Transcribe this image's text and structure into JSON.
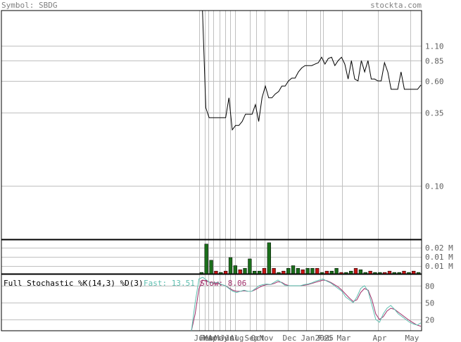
{
  "header": {
    "symbol": "Symbol: SBDG",
    "site": "stockta.com"
  },
  "chart_data": {
    "type": "line",
    "price": {
      "y_scale": "log",
      "ylim": [
        0.04,
        2.0
      ],
      "y_ticks": [
        {
          "value": 1.1,
          "label": "1.10"
        },
        {
          "value": 0.85,
          "label": "0.85"
        },
        {
          "value": 0.6,
          "label": "0.60"
        },
        {
          "value": 0.35,
          "label": "0.35"
        },
        {
          "value": 0.1,
          "label": "0.10"
        }
      ],
      "values": [
        2.0,
        2.0,
        0.38,
        0.32,
        0.32,
        0.32,
        0.32,
        0.32,
        0.32,
        0.45,
        0.26,
        0.28,
        0.28,
        0.3,
        0.34,
        0.34,
        0.34,
        0.4,
        0.3,
        0.45,
        0.55,
        0.45,
        0.45,
        0.48,
        0.5,
        0.55,
        0.55,
        0.6,
        0.63,
        0.63,
        0.7,
        0.75,
        0.78,
        0.78,
        0.78,
        0.8,
        0.82,
        0.9,
        0.8,
        0.88,
        0.9,
        0.78,
        0.85,
        0.9,
        0.8,
        0.62,
        0.85,
        0.62,
        0.6,
        0.85,
        0.7,
        0.85,
        0.62,
        0.62,
        0.6,
        0.6,
        0.82,
        0.7,
        0.52,
        0.52,
        0.52,
        0.7,
        0.52,
        0.52,
        0.52,
        0.52,
        0.52,
        0.56
      ]
    },
    "volume": {
      "y_ticks": [
        "0.02 M",
        "0.01 M",
        "0.01 M"
      ],
      "ymax": 0.024,
      "values": [
        0.001,
        0.022,
        0.01,
        0.002,
        0.001,
        0.002,
        0.012,
        0.006,
        0.003,
        0.004,
        0.011,
        0.002,
        0.002,
        0.004,
        0.023,
        0.004,
        0.001,
        0.002,
        0.004,
        0.006,
        0.004,
        0.003,
        0.004,
        0.004,
        0.004,
        0.001,
        0.002,
        0.002,
        0.004,
        0.001,
        0.001,
        0.002,
        0.004,
        0.003,
        0.001,
        0.002,
        0.001,
        0.001,
        0.001,
        0.002,
        0.001,
        0.001,
        0.002,
        0.001,
        0.002,
        0.001
      ],
      "colors": [
        "g",
        "g",
        "g",
        "r",
        "g",
        "r",
        "g",
        "g",
        "r",
        "g",
        "g",
        "g",
        "g",
        "r",
        "g",
        "r",
        "g",
        "r",
        "g",
        "g",
        "g",
        "r",
        "g",
        "g",
        "r",
        "g",
        "r",
        "g",
        "g",
        "r",
        "g",
        "g",
        "r",
        "g",
        "g",
        "r",
        "g",
        "g",
        "r",
        "r",
        "g",
        "g",
        "r",
        "g",
        "r",
        "g"
      ]
    },
    "stochastic": {
      "name": "Full Stochastic %K(14,3) %D(3)",
      "fast_label": "Fast: 13.51",
      "slow_label": "Slow: 8.06",
      "y_ticks": [
        80,
        50,
        20
      ],
      "ylim": [
        0,
        100
      ],
      "fast": [
        0,
        50,
        92,
        95,
        90,
        85,
        85,
        86,
        82,
        80,
        75,
        70,
        68,
        70,
        72,
        70,
        70,
        75,
        80,
        82,
        83,
        82,
        86,
        90,
        85,
        80,
        80,
        80,
        80,
        80,
        82,
        83,
        85,
        88,
        90,
        92,
        88,
        85,
        80,
        75,
        70,
        60,
        55,
        50,
        60,
        75,
        80,
        70,
        45,
        20,
        15,
        30,
        40,
        45,
        38,
        30,
        25,
        20,
        15,
        12,
        10,
        14
      ],
      "slow": [
        0,
        30,
        75,
        90,
        88,
        86,
        84,
        84,
        82,
        80,
        76,
        72,
        70,
        70,
        71,
        70,
        70,
        73,
        77,
        80,
        82,
        82,
        84,
        87,
        86,
        82,
        80,
        80,
        80,
        80,
        81,
        82,
        84,
        86,
        88,
        90,
        89,
        86,
        82,
        78,
        72,
        65,
        58,
        52,
        55,
        68,
        75,
        72,
        55,
        30,
        20,
        25,
        35,
        40,
        38,
        33,
        28,
        23,
        18,
        14,
        10,
        8
      ]
    },
    "x_ticks": [
      "Jun",
      "Feb",
      "Mar",
      "Apr",
      "May",
      "Jun",
      "Jul",
      "Aug",
      "Sep",
      "Oct",
      "Nov",
      "Dec",
      "Jan",
      "2025",
      "Feb",
      "Mar",
      "Apr",
      "May"
    ],
    "colors": {
      "price_line": "#000000",
      "grid": "#c0c0c0",
      "volume_up": "#1a6e1a",
      "volume_down": "#c81414",
      "stoch_fast": "#5fbfb0",
      "stoch_slow": "#a0306a"
    }
  }
}
